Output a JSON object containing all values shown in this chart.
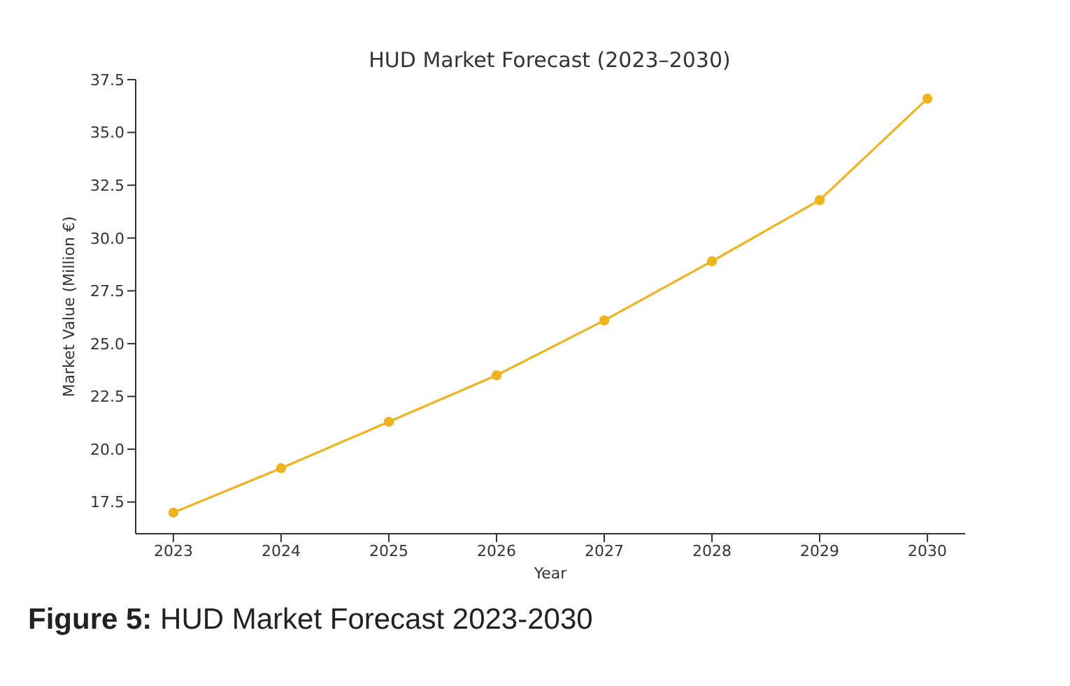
{
  "chart_data": {
    "type": "line",
    "title": "HUD Market Forecast (2023–2030)",
    "xlabel": "Year",
    "ylabel": "Market Value (Million €)",
    "annotations": [
      "Figure 5: HUD Market Forecast 2023-2030"
    ],
    "x": [
      2023,
      2024,
      2025,
      2026,
      2027,
      2028,
      2029,
      2030
    ],
    "series": [
      {
        "color": "#efb320",
        "values": [
          17.0,
          19.1,
          21.3,
          23.5,
          26.1,
          28.9,
          31.8,
          36.6
        ]
      }
    ],
    "xlim": [
      2022.65,
      2030.35
    ],
    "xticks": [
      2023,
      2024,
      2025,
      2026,
      2027,
      2028,
      2029,
      2030
    ],
    "ylim": [
      16.0,
      37.5
    ],
    "yticks": [
      17.5,
      {
        "value": 20,
        "label": "20.0"
      },
      22.5,
      {
        "value": 25,
        "label": "25.0"
      },
      27.5,
      {
        "value": 30,
        "label": "30.0"
      },
      32.5,
      {
        "value": 35,
        "label": "35.0"
      },
      37.5
    ],
    "grid": false,
    "legend": false,
    "marker": "circle",
    "line_style": "solid"
  }
}
